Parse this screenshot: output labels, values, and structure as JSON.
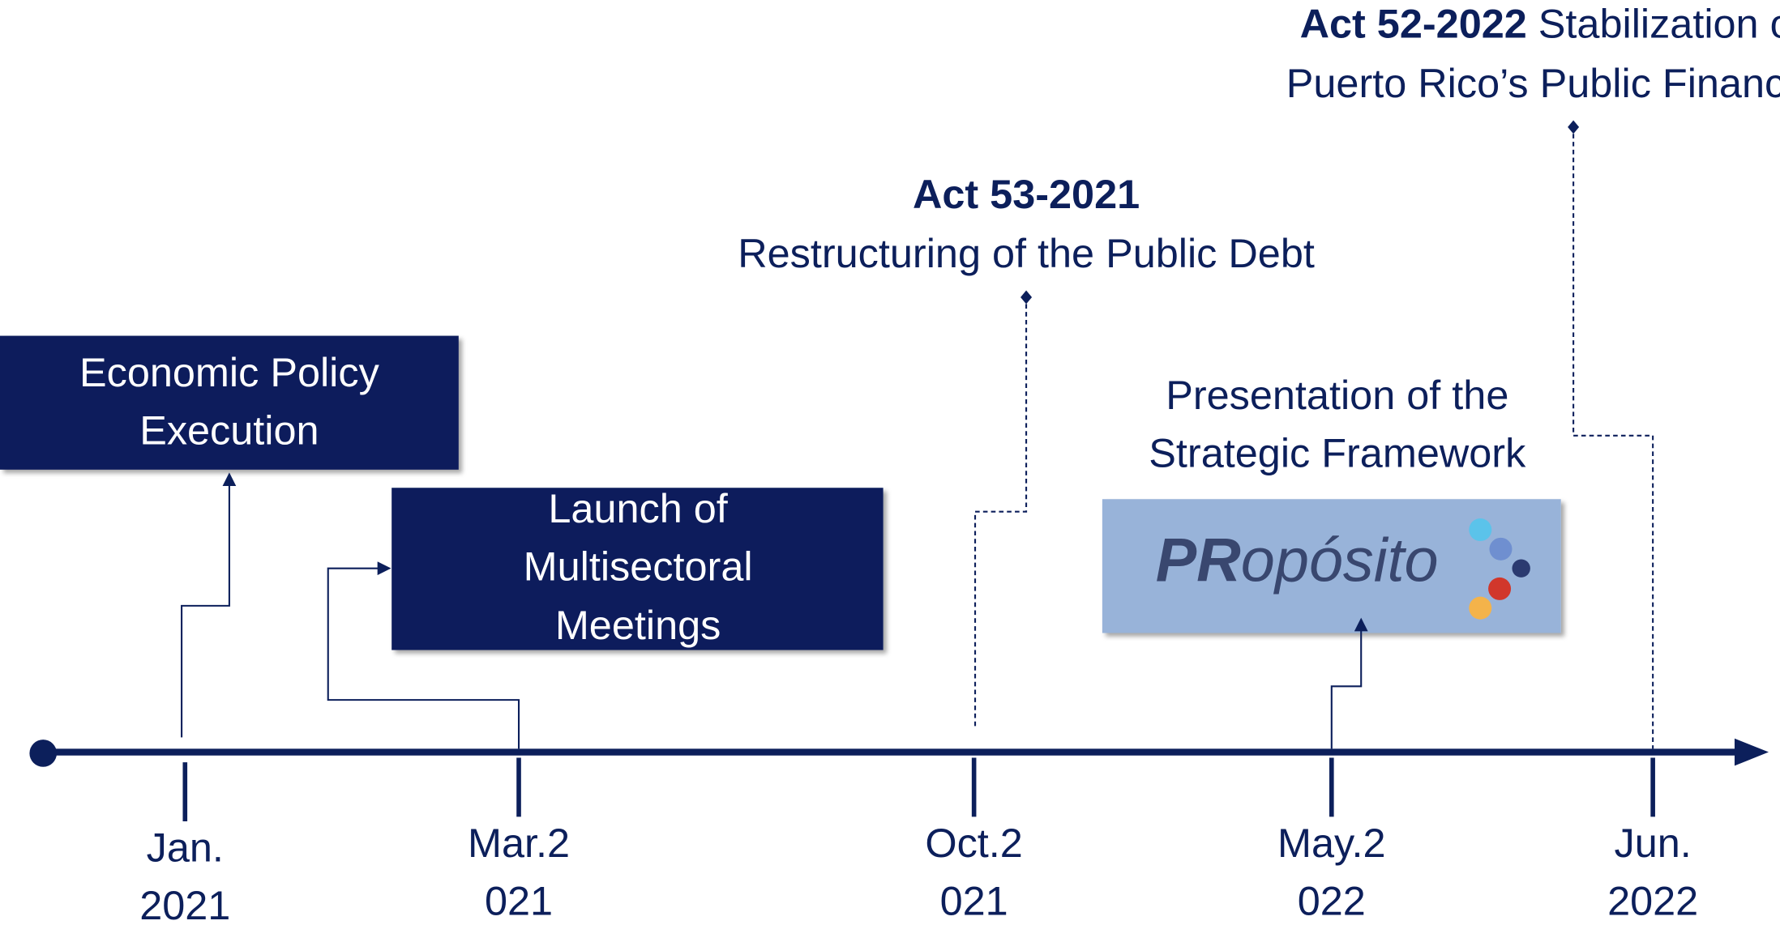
{
  "timeline": {
    "dates": [
      {
        "line1": "Jan.",
        "line2": "2021"
      },
      {
        "line1": "Mar.2",
        "line2": "021"
      },
      {
        "line1": "Oct.2",
        "line2": "021"
      },
      {
        "line1": "May.2",
        "line2": "022"
      },
      {
        "line1": "Jun.",
        "line2": "2022"
      }
    ]
  },
  "events": {
    "economic_policy": {
      "lines": [
        "Economic Policy",
        "Execution"
      ]
    },
    "launch": {
      "lines": [
        "Launch of",
        "Multisectoral",
        "Meetings"
      ]
    },
    "act53": {
      "title": "Act 53-2021",
      "subtitle": "Restructuring of the Public Debt"
    },
    "presentation": {
      "lines": [
        "Presentation of the",
        "Strategic Framework"
      ],
      "logo": {
        "bold": "PR",
        "rest": "opósito"
      }
    },
    "act52": {
      "title": "Act 52-2022",
      "line1_rest": "Stabilization of",
      "line2": "Puerto Rico’s Public Finances"
    }
  }
}
